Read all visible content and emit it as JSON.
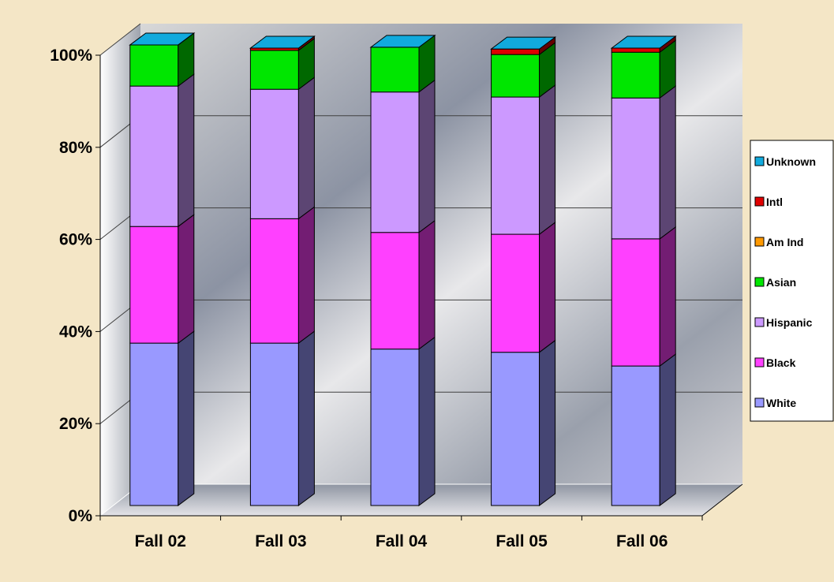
{
  "chart_data": {
    "type": "bar",
    "stacked": true,
    "three_d": true,
    "categories": [
      "Fall 02",
      "Fall 03",
      "Fall 04",
      "Fall 05",
      "Fall 06"
    ],
    "y_ticks": [
      "0%",
      "20%",
      "40%",
      "60%",
      "80%",
      "100%"
    ],
    "ylim": [
      0,
      100
    ],
    "grid": true,
    "legend_position": "right",
    "series": [
      {
        "name": "White",
        "color": "#9999ff",
        "values": [
          35.5,
          35.5,
          34.2,
          33.5,
          30.5
        ]
      },
      {
        "name": "Black",
        "color": "#ff40ff",
        "values": [
          25.5,
          27.2,
          25.5,
          25.8,
          27.8
        ]
      },
      {
        "name": "Hispanic",
        "color": "#cc99ff",
        "values": [
          30.7,
          28.3,
          30.7,
          30.0,
          30.8
        ]
      },
      {
        "name": "Asian",
        "color": "#00e600",
        "values": [
          9.0,
          8.5,
          9.8,
          9.3,
          10.0
        ]
      },
      {
        "name": "Am Ind",
        "color": "#ff9900",
        "values": [
          0.0,
          0.0,
          0.0,
          0.0,
          0.0
        ]
      },
      {
        "name": "Intl",
        "color": "#e00000",
        "values": [
          0.0,
          0.5,
          0.0,
          1.2,
          0.9
        ]
      },
      {
        "name": "Unknown",
        "color": "#11aadd",
        "values": [
          0.0,
          0.0,
          0.0,
          0.0,
          0.0
        ]
      }
    ]
  }
}
